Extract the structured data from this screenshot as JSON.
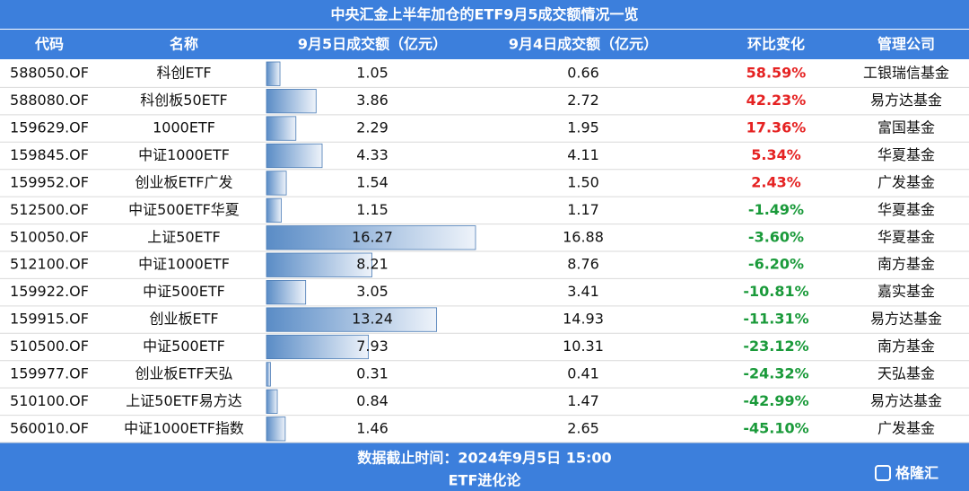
{
  "header": {
    "title": "中央汇金上半年加仓的ETF9月5成交额情况一览"
  },
  "table": {
    "columns": [
      "代码",
      "名称",
      "9月5日成交额（亿元）",
      "9月4日成交额（亿元）",
      "环比变化",
      "管理公司"
    ],
    "rows": [
      [
        "588050.OF",
        "科创ETF",
        "1.05",
        "0.66",
        "58.59%",
        "工银瑞信基金"
      ],
      [
        "588080.OF",
        "科创板50ETF",
        "3.86",
        "2.72",
        "42.23%",
        "易方达基金"
      ],
      [
        "159629.OF",
        "1000ETF",
        "2.29",
        "1.95",
        "17.36%",
        "富国基金"
      ],
      [
        "159845.OF",
        "中证1000ETF",
        "4.33",
        "4.11",
        "5.34%",
        "华夏基金"
      ],
      [
        "159952.OF",
        "创业板ETF广发",
        "1.54",
        "1.50",
        "2.43%",
        "广发基金"
      ],
      [
        "512500.OF",
        "中证500ETF华夏",
        "1.15",
        "1.17",
        "-1.49%",
        "华夏基金"
      ],
      [
        "510050.OF",
        "上证50ETF",
        "16.27",
        "16.88",
        "-3.60%",
        "华夏基金"
      ],
      [
        "512100.OF",
        "中证1000ETF",
        "8.21",
        "8.76",
        "-6.20%",
        "南方基金"
      ],
      [
        "159922.OF",
        "中证500ETF",
        "3.05",
        "3.41",
        "-10.81%",
        "嘉实基金"
      ],
      [
        "159915.OF",
        "创业板ETF",
        "13.24",
        "14.93",
        "-11.31%",
        "易方达基金"
      ],
      [
        "510500.OF",
        "中证500ETF",
        "7.93",
        "10.31",
        "-23.12%",
        "南方基金"
      ],
      [
        "159977.OF",
        "创业板ETF天弘",
        "0.31",
        "0.41",
        "-24.32%",
        "天弘基金"
      ],
      [
        "510100.OF",
        "上证50ETF易方达",
        "0.84",
        "1.47",
        "-42.99%",
        "易方达基金"
      ],
      [
        "560010.OF",
        "中证1000ETF指数",
        "1.46",
        "2.65",
        "-45.10%",
        "广发基金"
      ]
    ]
  },
  "footer": {
    "note": "数据截止时间：2024年9月5日 15:00",
    "source": "ETF进化论",
    "watermark": "格隆汇"
  }
}
